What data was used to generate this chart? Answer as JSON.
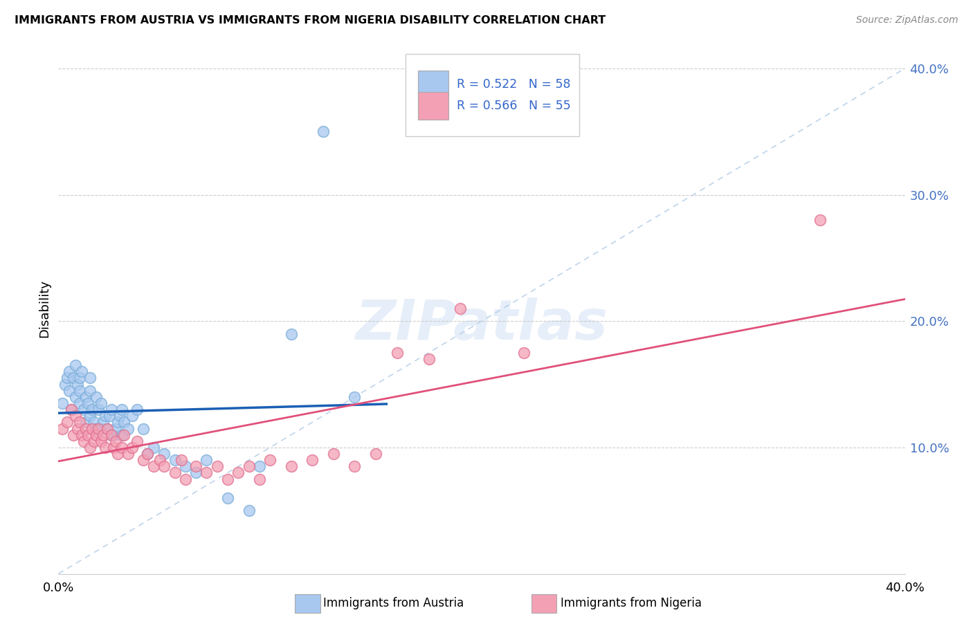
{
  "title": "IMMIGRANTS FROM AUSTRIA VS IMMIGRANTS FROM NIGERIA DISABILITY CORRELATION CHART",
  "source": "Source: ZipAtlas.com",
  "ylabel": "Disability",
  "xlim": [
    0.0,
    0.4
  ],
  "ylim": [
    0.0,
    0.42
  ],
  "yticks": [
    0.1,
    0.2,
    0.3,
    0.4
  ],
  "ytick_labels": [
    "10.0%",
    "20.0%",
    "30.0%",
    "40.0%"
  ],
  "austria_R": 0.522,
  "austria_N": 58,
  "nigeria_R": 0.566,
  "nigeria_N": 55,
  "austria_color": "#a8c8f0",
  "austria_edge_color": "#7aadd8",
  "austria_line_color": "#1a5fb4",
  "nigeria_color": "#f4a0b4",
  "nigeria_edge_color": "#e07090",
  "nigeria_line_color": "#e0507a",
  "diagonal_color": "#b8cfe8",
  "watermark": "ZIPatlas",
  "legend_color": "#3366cc",
  "austria_x": [
    0.002,
    0.003,
    0.004,
    0.005,
    0.005,
    0.006,
    0.007,
    0.008,
    0.008,
    0.009,
    0.01,
    0.01,
    0.01,
    0.011,
    0.012,
    0.013,
    0.013,
    0.014,
    0.015,
    0.015,
    0.015,
    0.016,
    0.017,
    0.018,
    0.018,
    0.019,
    0.02,
    0.02,
    0.021,
    0.022,
    0.023,
    0.024,
    0.025,
    0.025,
    0.026,
    0.027,
    0.028,
    0.029,
    0.03,
    0.03,
    0.031,
    0.033,
    0.035,
    0.037,
    0.04,
    0.042,
    0.045,
    0.05,
    0.055,
    0.06,
    0.065,
    0.07,
    0.08,
    0.09,
    0.095,
    0.11,
    0.125,
    0.14
  ],
  "austria_y": [
    0.135,
    0.15,
    0.155,
    0.145,
    0.16,
    0.13,
    0.155,
    0.14,
    0.165,
    0.15,
    0.145,
    0.135,
    0.155,
    0.16,
    0.13,
    0.14,
    0.12,
    0.135,
    0.125,
    0.145,
    0.155,
    0.13,
    0.12,
    0.14,
    0.115,
    0.13,
    0.115,
    0.135,
    0.12,
    0.125,
    0.115,
    0.125,
    0.11,
    0.13,
    0.11,
    0.115,
    0.12,
    0.125,
    0.11,
    0.13,
    0.12,
    0.115,
    0.125,
    0.13,
    0.115,
    0.095,
    0.1,
    0.095,
    0.09,
    0.085,
    0.08,
    0.09,
    0.06,
    0.05,
    0.085,
    0.19,
    0.35,
    0.14
  ],
  "nigeria_x": [
    0.002,
    0.004,
    0.006,
    0.007,
    0.008,
    0.009,
    0.01,
    0.011,
    0.012,
    0.013,
    0.014,
    0.015,
    0.016,
    0.017,
    0.018,
    0.019,
    0.02,
    0.021,
    0.022,
    0.023,
    0.025,
    0.026,
    0.027,
    0.028,
    0.03,
    0.031,
    0.033,
    0.035,
    0.037,
    0.04,
    0.042,
    0.045,
    0.048,
    0.05,
    0.055,
    0.058,
    0.06,
    0.065,
    0.07,
    0.075,
    0.08,
    0.085,
    0.09,
    0.095,
    0.1,
    0.11,
    0.12,
    0.13,
    0.14,
    0.15,
    0.16,
    0.175,
    0.19,
    0.22,
    0.36
  ],
  "nigeria_y": [
    0.115,
    0.12,
    0.13,
    0.11,
    0.125,
    0.115,
    0.12,
    0.11,
    0.105,
    0.115,
    0.11,
    0.1,
    0.115,
    0.105,
    0.11,
    0.115,
    0.105,
    0.11,
    0.1,
    0.115,
    0.11,
    0.1,
    0.105,
    0.095,
    0.1,
    0.11,
    0.095,
    0.1,
    0.105,
    0.09,
    0.095,
    0.085,
    0.09,
    0.085,
    0.08,
    0.09,
    0.075,
    0.085,
    0.08,
    0.085,
    0.075,
    0.08,
    0.085,
    0.075,
    0.09,
    0.085,
    0.09,
    0.095,
    0.085,
    0.095,
    0.175,
    0.17,
    0.21,
    0.175,
    0.28
  ]
}
